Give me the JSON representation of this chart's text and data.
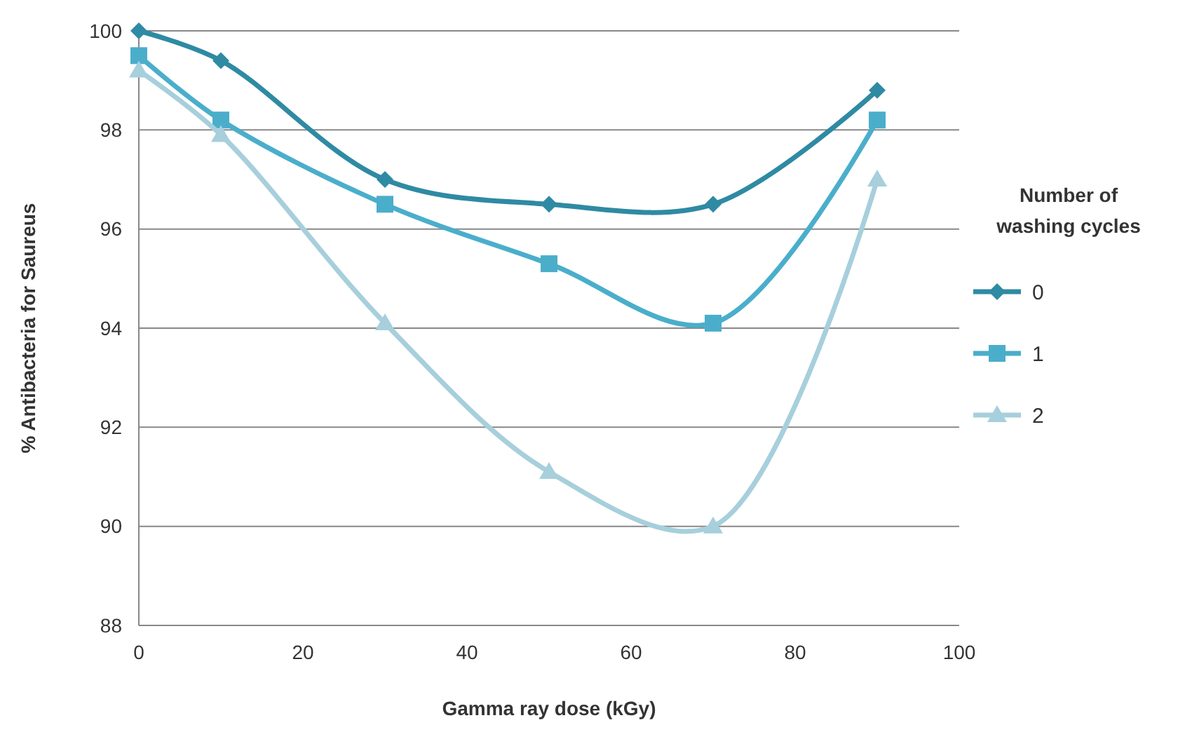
{
  "chart_data": {
    "type": "line",
    "xlabel": "Gamma ray dose (kGy)",
    "ylabel": "% Antibacteria for Saureus",
    "legend_title": "Number of washing cycles",
    "x": [
      0,
      10,
      30,
      50,
      70,
      90
    ],
    "series": [
      {
        "name": "0",
        "color": "#2f8aa3",
        "marker": "diamond",
        "values": [
          100,
          99.4,
          97.0,
          96.5,
          96.5,
          98.8
        ]
      },
      {
        "name": "1",
        "color": "#4aaecb",
        "marker": "square",
        "values": [
          99.5,
          98.2,
          96.5,
          95.3,
          94.1,
          98.2
        ]
      },
      {
        "name": "2",
        "color": "#a7cfdc",
        "marker": "triangle",
        "values": [
          99.2,
          97.9,
          94.1,
          91.1,
          90.0,
          97.0
        ]
      }
    ],
    "xlim": [
      0,
      100
    ],
    "xticks": [
      0,
      20,
      40,
      60,
      80,
      100
    ],
    "ylim": [
      88,
      100
    ],
    "yticks": [
      88,
      90,
      92,
      94,
      96,
      98,
      100
    ],
    "grid": "y",
    "legend": "right"
  }
}
